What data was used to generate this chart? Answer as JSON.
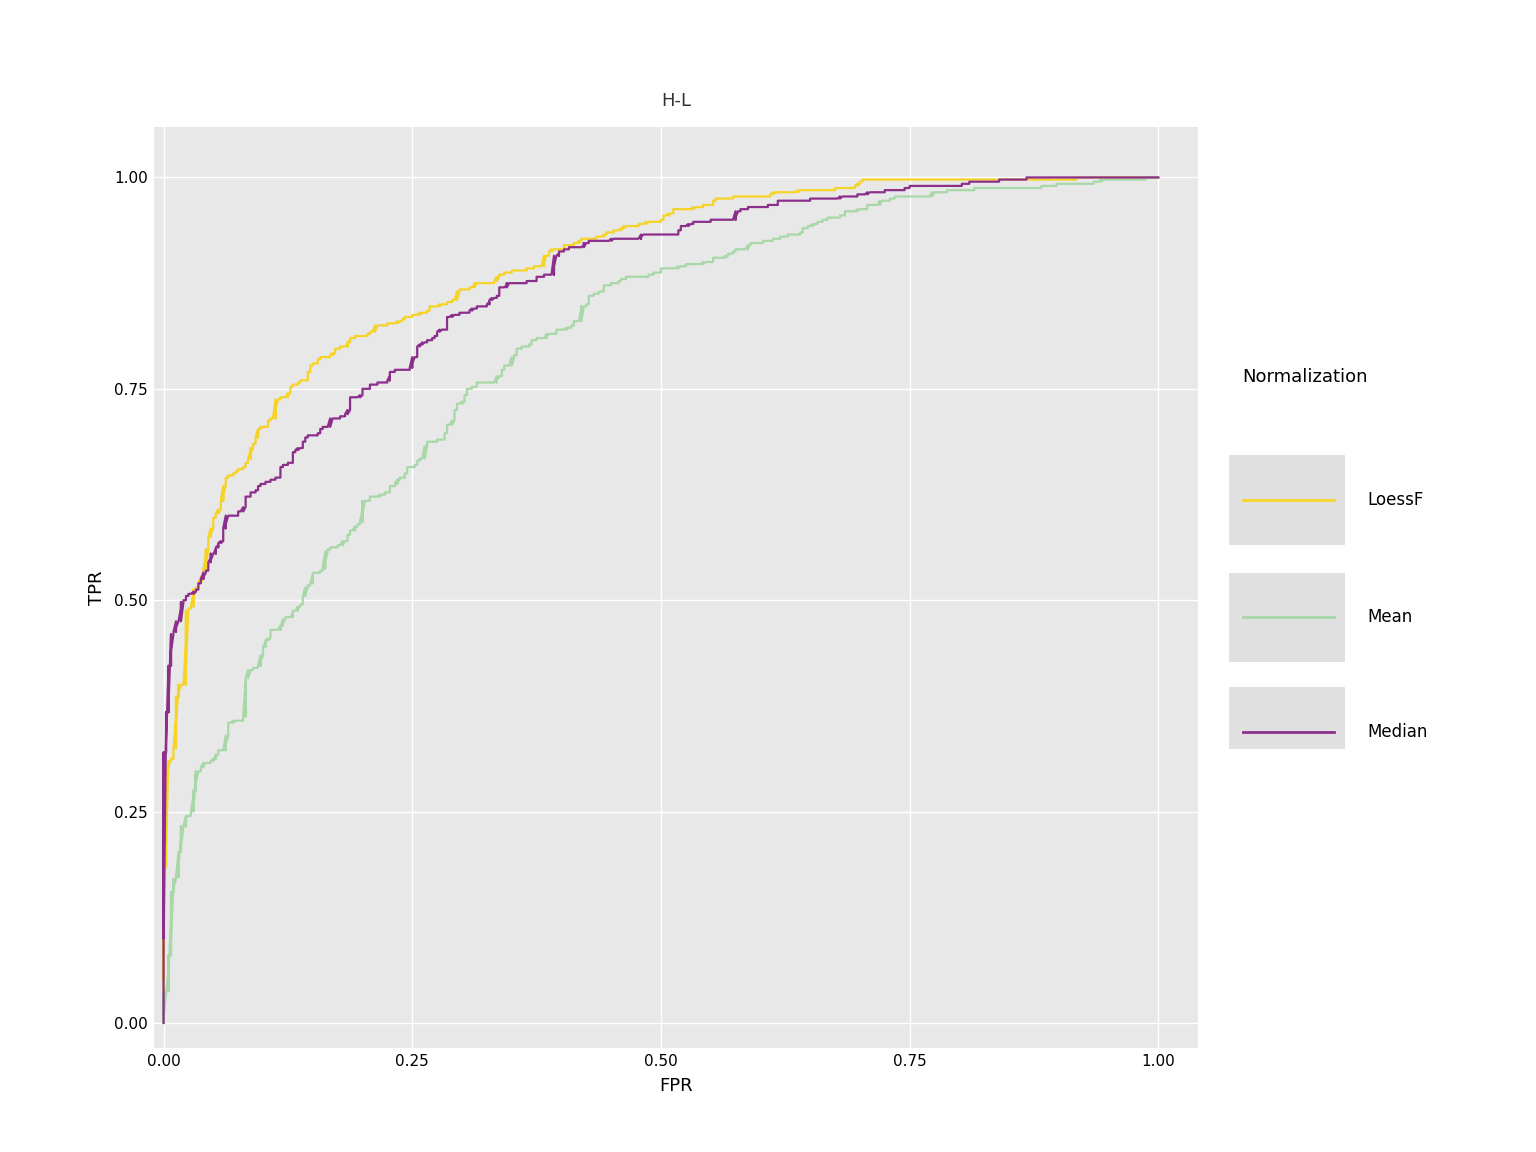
{
  "title": "H-L",
  "xlabel": "FPR",
  "ylabel": "TPR",
  "fig_bg_color": "#FFFFFF",
  "plot_bg_color": "#E8E8E8",
  "grid_color": "#FFFFFF",
  "title_bg_color": "#C8C8C8",
  "legend_bg_color": "#E8E8E8",
  "colors": {
    "LoessF": "#F5D327",
    "Mean": "#A8D8A8",
    "Median": "#8B2F8B"
  },
  "legend_title": "Normalization",
  "legend_keys": [
    "LoessF",
    "Mean",
    "Median"
  ],
  "xlim": [
    -0.01,
    1.04
  ],
  "ylim": [
    -0.03,
    1.06
  ],
  "xticks": [
    0.0,
    0.25,
    0.5,
    0.75,
    1.0
  ],
  "yticks": [
    0.0,
    0.25,
    0.5,
    0.75,
    1.0
  ],
  "xtick_labels": [
    "0.00",
    "0.25",
    "0.50",
    "0.75",
    "1.00"
  ],
  "ytick_labels": [
    "0.00",
    "0.25",
    "0.50",
    "0.75",
    "1.00"
  ],
  "line_width": 1.6,
  "tick_fontsize": 11,
  "label_fontsize": 13,
  "legend_fontsize": 12,
  "legend_title_fontsize": 13
}
